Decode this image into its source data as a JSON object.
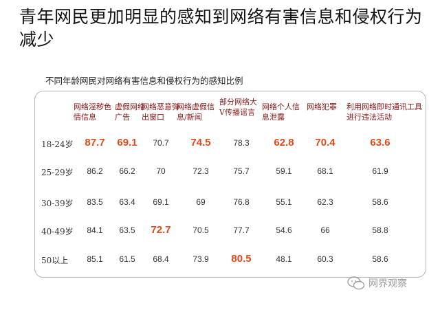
{
  "page": {
    "title": "青年网民更加明显的感知到网络有害信息和侵权行为减少",
    "watermark": "网界观察",
    "highlight_color": "#e04a1a",
    "header_color": "#8a1515"
  },
  "chart_data": {
    "type": "table",
    "title": "不同年龄网民对网络有害信息和侵权行为的感知比例",
    "columns": [
      "网络淫秽色情信息",
      "虚假网络广告",
      "网络恶意弹出窗口",
      "网络虚假信息/新闻",
      "部分网络大V传播谣言",
      "网络个人信息泄露",
      "网络犯罪",
      "利用网络即时通讯工具进行违法活动"
    ],
    "rows": [
      {
        "label": "18-24岁",
        "values": [
          "87.7",
          "69.1",
          "70.7",
          "74.5",
          "78.3",
          "62.8",
          "70.4",
          "63.6"
        ],
        "highlight": [
          true,
          true,
          false,
          true,
          false,
          true,
          true,
          true
        ]
      },
      {
        "label": "25-29岁",
        "values": [
          "86.2",
          "66.2",
          "70",
          "72.3",
          "75.7",
          "59.1",
          "68.1",
          "61.9"
        ],
        "highlight": [
          false,
          false,
          false,
          false,
          false,
          false,
          false,
          false
        ]
      },
      {
        "label": "30-39岁",
        "values": [
          "83.5",
          "63.4",
          "69.1",
          "69",
          "76.8",
          "55.1",
          "62.3",
          "58.6"
        ],
        "highlight": [
          false,
          false,
          false,
          false,
          false,
          false,
          false,
          false
        ]
      },
      {
        "label": "40-49岁",
        "values": [
          "84.1",
          "63.5",
          "72.7",
          "70.5",
          "77.7",
          "54.6",
          "66",
          "58.8"
        ],
        "highlight": [
          false,
          false,
          true,
          false,
          false,
          false,
          false,
          false
        ]
      },
      {
        "label": "50以上",
        "values": [
          "85.1",
          "61.5",
          "68.4",
          "73.9",
          "80.5",
          "48.1",
          "60.3",
          "58.6"
        ],
        "highlight": [
          false,
          false,
          false,
          false,
          true,
          false,
          false,
          false
        ]
      }
    ]
  }
}
